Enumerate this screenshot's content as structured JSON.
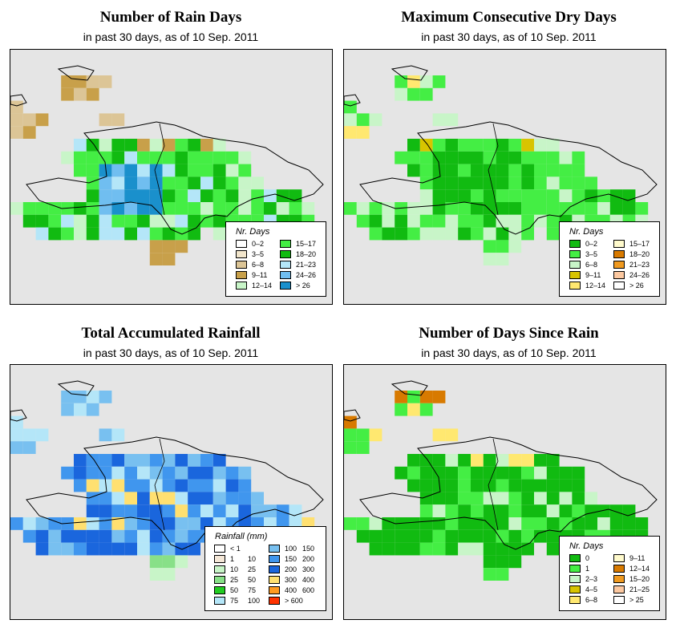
{
  "panels": [
    {
      "id": "rain-days",
      "title": "Number of Rain Days",
      "subtitle": "in past 30 days, as of  10 Sep. 2011",
      "legend": {
        "title": "Nr. Days",
        "items": [
          {
            "label": "0–2",
            "color": "#ffffff"
          },
          {
            "label": "3–5",
            "color": "#f2e6cc"
          },
          {
            "label": "6–8",
            "color": "#dcc596"
          },
          {
            "label": "9–11",
            "color": "#c8a04a"
          },
          {
            "label": "12–14",
            "color": "#c8f5c8"
          },
          {
            "label": "15–17",
            "color": "#44ee44"
          },
          {
            "label": "18–20",
            "color": "#11bb11"
          },
          {
            "label": "21–23",
            "color": "#b4e6f8"
          },
          {
            "label": "24–26",
            "color": "#70bef0"
          },
          {
            "label": "> 26",
            "color": "#1a90cc"
          }
        ]
      }
    },
    {
      "id": "dry-days",
      "title": "Maximum Consecutive Dry Days",
      "subtitle": "in past 30 days, as of  10 Sep. 2011",
      "legend": {
        "title": "Nr. Days",
        "items": [
          {
            "label": "0–2",
            "color": "#11bb11"
          },
          {
            "label": "3–5",
            "color": "#44ee44"
          },
          {
            "label": "6–8",
            "color": "#c8f5c8"
          },
          {
            "label": "9–11",
            "color": "#d8c400"
          },
          {
            "label": "12–14",
            "color": "#ffe870"
          },
          {
            "label": "15–17",
            "color": "#fffacc"
          },
          {
            "label": "18–20",
            "color": "#d87a00"
          },
          {
            "label": "21–23",
            "color": "#f09a20"
          },
          {
            "label": "24–26",
            "color": "#fcc8a0"
          },
          {
            "label": "> 26",
            "color": "#ffffff"
          }
        ]
      }
    },
    {
      "id": "rainfall",
      "title": "Total Accumulated Rainfall",
      "subtitle": "in past 30 days, as of  10 Sep. 2011",
      "legend": {
        "title": "Rainfall (mm)",
        "items": [
          {
            "lo": "< 1",
            "hi": "",
            "color": "#ffffff"
          },
          {
            "lo": "1",
            "hi": "10",
            "color": "#f5e8d8"
          },
          {
            "lo": "10",
            "hi": "25",
            "color": "#c8f5c8"
          },
          {
            "lo": "25",
            "hi": "50",
            "color": "#88e088"
          },
          {
            "lo": "50",
            "hi": "75",
            "color": "#22cc22"
          },
          {
            "lo": "75",
            "hi": "100",
            "color": "#b4e6f8"
          },
          {
            "lo": "100",
            "hi": "150",
            "color": "#78c0f0"
          },
          {
            "lo": "150",
            "hi": "200",
            "color": "#4096ee"
          },
          {
            "lo": "200",
            "hi": "300",
            "color": "#1a66dd"
          },
          {
            "lo": "300",
            "hi": "400",
            "color": "#ffe070"
          },
          {
            "lo": "400",
            "hi": "600",
            "color": "#ff9a20"
          },
          {
            "lo": "> 600",
            "hi": "",
            "color": "#ff3300"
          }
        ]
      }
    },
    {
      "id": "since-rain",
      "title": "Number of Days Since Rain",
      "subtitle": "in past 30 days, as of  10 Sep. 2011",
      "legend": {
        "title": "Nr. Days",
        "items": [
          {
            "label": "0",
            "color": "#11bb11"
          },
          {
            "label": "1",
            "color": "#44ee44"
          },
          {
            "label": "2–3",
            "color": "#c8f5c8"
          },
          {
            "label": "4–5",
            "color": "#d8c400"
          },
          {
            "label": "6–8",
            "color": "#ffe870"
          },
          {
            "label": "9–11",
            "color": "#fffacc"
          },
          {
            "label": "12–14",
            "color": "#d87a00"
          },
          {
            "label": "15–20",
            "color": "#f09a20"
          },
          {
            "label": "21–25",
            "color": "#fcc8a0"
          },
          {
            "label": "> 25",
            "color": "#ffffff"
          }
        ]
      }
    }
  ]
}
